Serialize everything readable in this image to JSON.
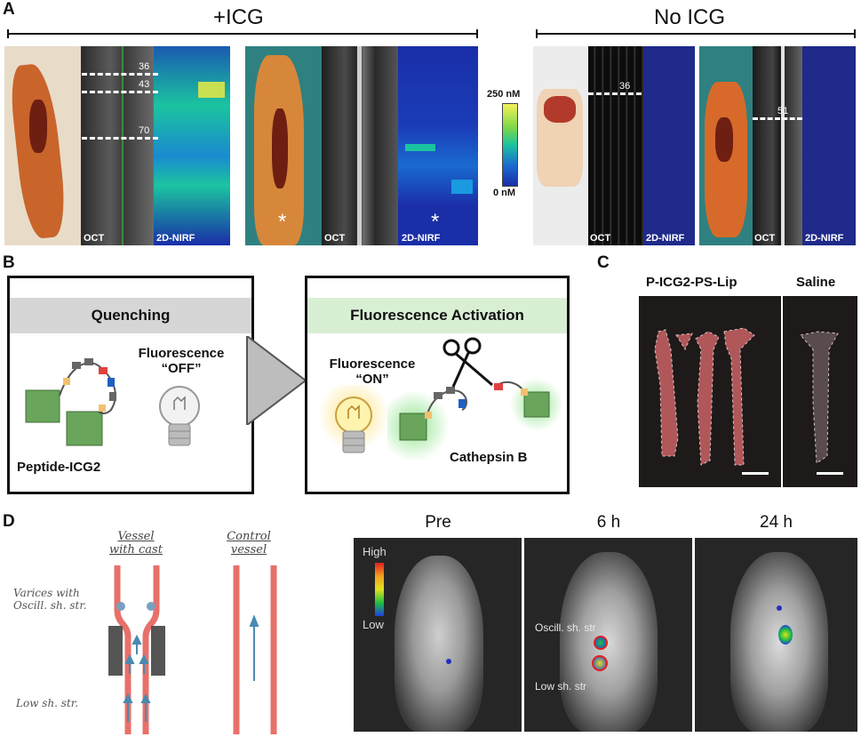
{
  "panel_a": {
    "letter": "A",
    "group_icg": "+ICG",
    "group_no_icg": "No ICG",
    "oct_label": "OCT",
    "nirf_label": "2D-NIRF",
    "depth_markers_1": [
      "36",
      "43",
      "70"
    ],
    "depth_marker_3": "36",
    "depth_marker_4": "51",
    "asterisk": "*",
    "scale_max": "250 nM",
    "scale_min": "0 nM",
    "colors": {
      "nirf_high": "#f4f25a",
      "nirf_mid": "#1bc4a0",
      "nirf_low": "#1a2ea8",
      "tissue": "#c9652b"
    }
  },
  "panel_b": {
    "letter": "B",
    "left_title": "Quenching",
    "left_fluor_1": "Fluorescence",
    "left_fluor_2": "“OFF”",
    "left_label": "Peptide-ICG2",
    "right_title": "Fluorescence Activation",
    "right_fluor_1": "Fluorescence",
    "right_fluor_2": "“ON”",
    "right_label": "Cathepsin B",
    "colors": {
      "left_header": "#d6d6d6",
      "right_header": "#d9efd4",
      "arrow": "#bdbdbd",
      "cube": "#6aa55c"
    }
  },
  "panel_c": {
    "letter": "C",
    "left_label": "P-ICG2-PS-Lip",
    "right_label": "Saline"
  },
  "panel_d": {
    "letter": "D",
    "vessel_cast_1": "Vessel",
    "vessel_cast_2": "with cast",
    "control_1": "Control",
    "control_2": "vessel",
    "varices_1": "Varices with",
    "varices_2": "Oscill. sh. str.",
    "low_shear": "Low sh. str.",
    "times": [
      "Pre",
      "6 h",
      "24 h"
    ],
    "legend_high": "High",
    "legend_low": "Low",
    "annot_oscill": "Oscill. sh. str",
    "annot_low": "Low sh. str"
  }
}
